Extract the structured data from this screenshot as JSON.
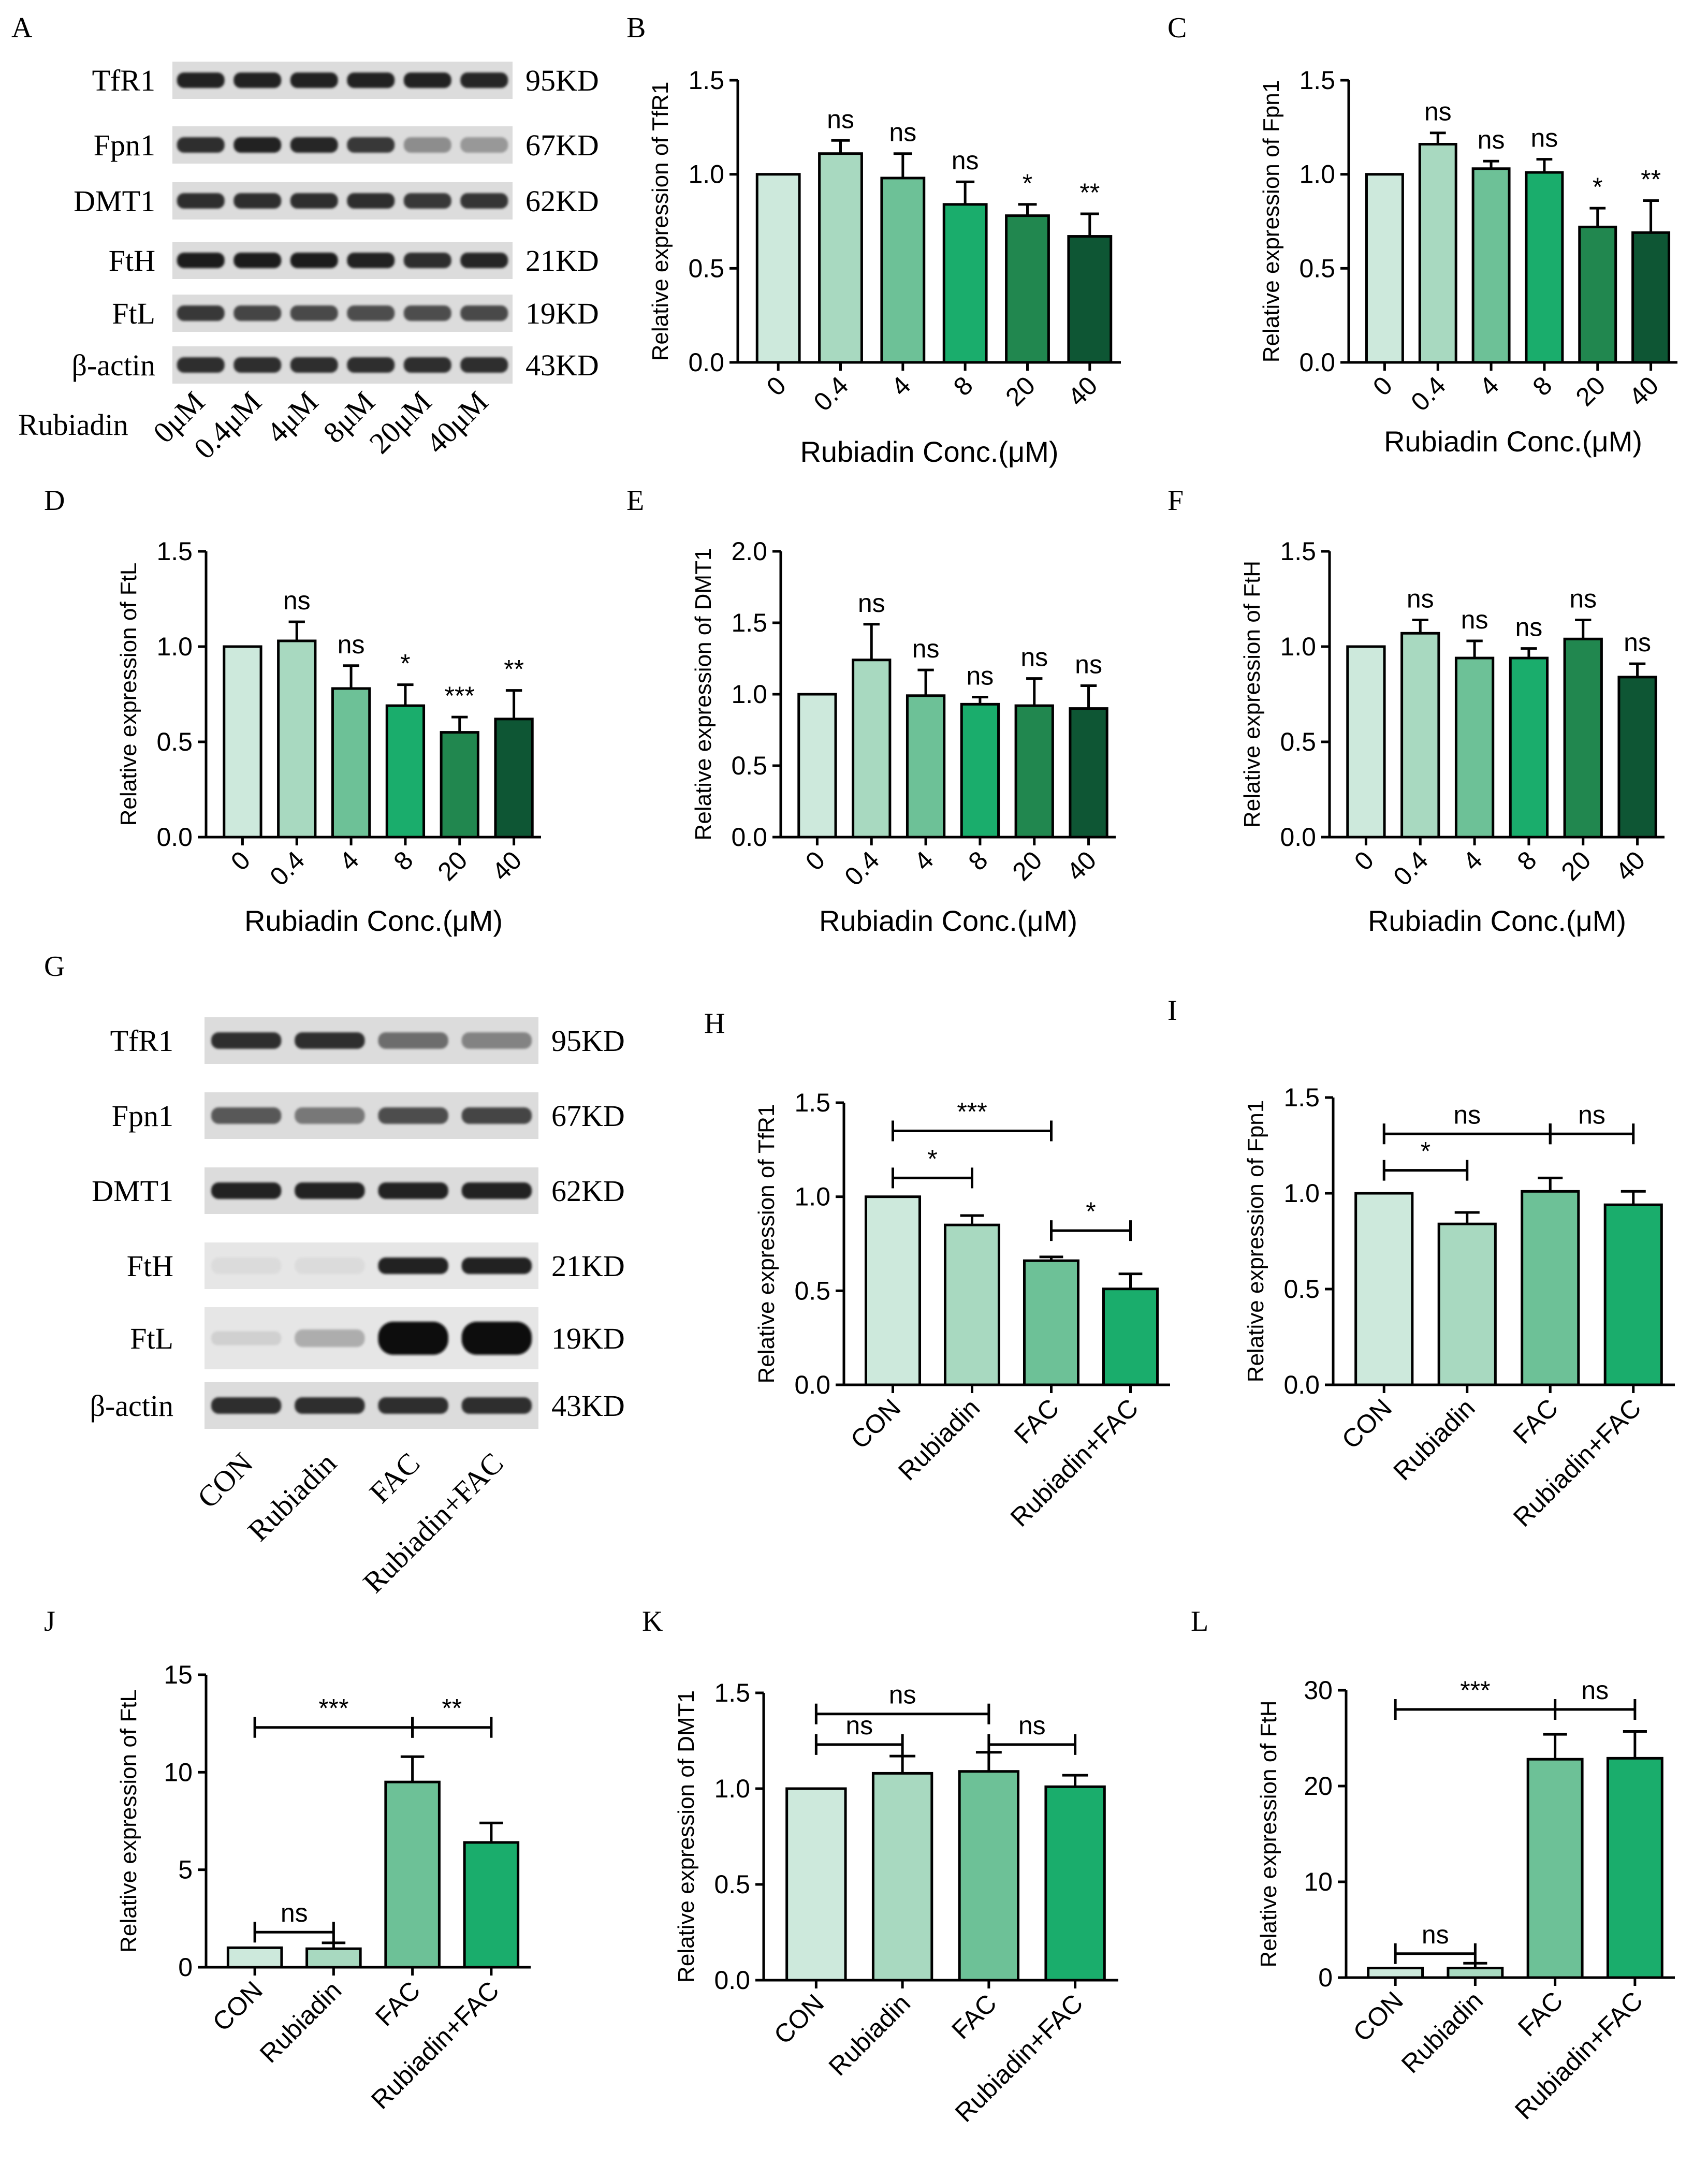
{
  "colors": {
    "c0": "#cde9dc",
    "c1": "#a8d9c0",
    "c2": "#6dc197",
    "c3": "#1aad6c",
    "c4": "#21874f",
    "c5": "#0e5634",
    "axis": "#000000",
    "blot_bg_a": "#dcdcdc",
    "blot_band": "#1a1a1a"
  },
  "blot_a": {
    "letter": "A",
    "proteins": [
      "TfR1",
      "Fpn1",
      "DMT1",
      "FtH",
      "FtL",
      "β-actin"
    ],
    "sizes": [
      "95KD",
      "67KD",
      "62KD",
      "21KD",
      "19KD",
      "43KD"
    ],
    "treatment_label": "Rubiadin",
    "lanes": [
      "0μM",
      "0.4μM",
      "4μM",
      "8μM",
      "20μM",
      "40μM"
    ],
    "intensities": [
      [
        0.9,
        0.9,
        0.9,
        0.9,
        0.9,
        0.88
      ],
      [
        0.85,
        0.9,
        0.88,
        0.8,
        0.4,
        0.35
      ],
      [
        0.85,
        0.85,
        0.85,
        0.85,
        0.8,
        0.82
      ],
      [
        0.95,
        0.95,
        0.95,
        0.92,
        0.85,
        0.88
      ],
      [
        0.8,
        0.75,
        0.72,
        0.7,
        0.7,
        0.72
      ],
      [
        0.85,
        0.85,
        0.85,
        0.85,
        0.85,
        0.85
      ]
    ]
  },
  "blot_g": {
    "letter": "G",
    "proteins": [
      "TfR1",
      "Fpn1",
      "DMT1",
      "FtH",
      "FtL",
      "β-actin"
    ],
    "sizes": [
      "95KD",
      "67KD",
      "62KD",
      "21KD",
      "19KD",
      "43KD"
    ],
    "lanes": [
      "CON",
      "Rubiadin",
      "FAC",
      "Rubiadin+FAC"
    ],
    "intensities": [
      [
        0.85,
        0.85,
        0.55,
        0.45
      ],
      [
        0.65,
        0.5,
        0.7,
        0.75
      ],
      [
        0.9,
        0.9,
        0.9,
        0.9
      ],
      [
        0.03,
        0.03,
        0.9,
        0.9
      ],
      [
        0.08,
        0.25,
        1.0,
        1.0
      ],
      [
        0.85,
        0.85,
        0.85,
        0.85
      ]
    ]
  },
  "chart_data": [
    {
      "letter": "B",
      "type": "bar",
      "categories": [
        "0",
        "0.4",
        "4",
        "8",
        "20",
        "40"
      ],
      "values": [
        1.0,
        1.11,
        0.98,
        0.84,
        0.78,
        0.67
      ],
      "errors": [
        0,
        0.07,
        0.13,
        0.12,
        0.06,
        0.12
      ],
      "significance": [
        "",
        "ns",
        "ns",
        "ns",
        "*",
        "**"
      ],
      "ylabel": "Relative expression of TfR1",
      "xlabel": "Rubiadin Conc.(μM)",
      "ylim": [
        0,
        1.5
      ],
      "yticks": [
        "0.0",
        "0.5",
        "1.0",
        "1.5"
      ],
      "brackets": []
    },
    {
      "letter": "C",
      "type": "bar",
      "categories": [
        "0",
        "0.4",
        "4",
        "8",
        "20",
        "40"
      ],
      "values": [
        1.0,
        1.16,
        1.03,
        1.01,
        0.72,
        0.69
      ],
      "errors": [
        0,
        0.06,
        0.04,
        0.07,
        0.1,
        0.17
      ],
      "significance": [
        "",
        "ns",
        "ns",
        "ns",
        "*",
        "**"
      ],
      "ylabel": "Relative expression of Fpn1",
      "xlabel": "Rubiadin Conc.(μM)",
      "ylim": [
        0,
        1.5
      ],
      "yticks": [
        "0.0",
        "0.5",
        "1.0",
        "1.5"
      ],
      "brackets": []
    },
    {
      "letter": "D",
      "type": "bar",
      "categories": [
        "0",
        "0.4",
        "4",
        "8",
        "20",
        "40"
      ],
      "values": [
        1.0,
        1.03,
        0.78,
        0.69,
        0.55,
        0.62
      ],
      "errors": [
        0,
        0.1,
        0.12,
        0.11,
        0.08,
        0.15
      ],
      "significance": [
        "",
        "ns",
        "ns",
        "*",
        "***",
        "**"
      ],
      "ylabel": "Relative expression of FtL",
      "xlabel": "Rubiadin Conc.(μM)",
      "ylim": [
        0,
        1.5
      ],
      "yticks": [
        "0.0",
        "0.5",
        "1.0",
        "1.5"
      ],
      "brackets": []
    },
    {
      "letter": "E",
      "type": "bar",
      "categories": [
        "0",
        "0.4",
        "4",
        "8",
        "20",
        "40"
      ],
      "values": [
        1.0,
        1.24,
        0.99,
        0.93,
        0.92,
        0.9
      ],
      "errors": [
        0,
        0.25,
        0.18,
        0.05,
        0.19,
        0.16
      ],
      "significance": [
        "",
        "ns",
        "ns",
        "ns",
        "ns",
        "ns"
      ],
      "ylabel": "Relative expression of DMT1",
      "xlabel": "Rubiadin Conc.(μM)",
      "ylim": [
        0,
        2.0
      ],
      "yticks": [
        "0.0",
        "0.5",
        "1.0",
        "1.5",
        "2.0"
      ],
      "brackets": []
    },
    {
      "letter": "F",
      "type": "bar",
      "categories": [
        "0",
        "0.4",
        "4",
        "8",
        "20",
        "40"
      ],
      "values": [
        1.0,
        1.07,
        0.94,
        0.94,
        1.04,
        0.84
      ],
      "errors": [
        0,
        0.07,
        0.09,
        0.05,
        0.1,
        0.07
      ],
      "significance": [
        "",
        "ns",
        "ns",
        "ns",
        "ns",
        "ns"
      ],
      "ylabel": "Relative expression of FtH",
      "xlabel": "Rubiadin Conc.(μM)",
      "ylim": [
        0,
        1.5
      ],
      "yticks": [
        "0.0",
        "0.5",
        "1.0",
        "1.5"
      ],
      "brackets": []
    },
    {
      "letter": "H",
      "type": "bar",
      "categories": [
        "CON",
        "Rubiadin",
        "FAC",
        "Rubiadin+FAC"
      ],
      "values": [
        1.0,
        0.85,
        0.66,
        0.51
      ],
      "errors": [
        0,
        0.05,
        0.02,
        0.08
      ],
      "significance": [
        "",
        "",
        "",
        ""
      ],
      "ylabel": "Relative expression of TfR1",
      "xlabel": "",
      "ylim": [
        0,
        1.5
      ],
      "yticks": [
        "0.0",
        "0.5",
        "1.0",
        "1.5"
      ],
      "brackets": [
        {
          "from": 0,
          "to": 2,
          "y": 1.35,
          "label": "***"
        },
        {
          "from": 0,
          "to": 1,
          "y": 1.1,
          "label": "*"
        },
        {
          "from": 2,
          "to": 3,
          "y": 0.82,
          "label": "*"
        }
      ]
    },
    {
      "letter": "I",
      "type": "bar",
      "categories": [
        "CON",
        "Rubiadin",
        "FAC",
        "Rubiadin+FAC"
      ],
      "values": [
        1.0,
        0.84,
        1.01,
        0.94
      ],
      "errors": [
        0,
        0.06,
        0.07,
        0.07
      ],
      "significance": [
        "",
        "",
        "",
        ""
      ],
      "ylabel": "Relative expression of Fpn1",
      "xlabel": "",
      "ylim": [
        0,
        1.5
      ],
      "yticks": [
        "0.0",
        "0.5",
        "1.0",
        "1.5"
      ],
      "brackets": [
        {
          "from": 0,
          "to": 2,
          "y": 1.31,
          "label": "ns"
        },
        {
          "from": 2,
          "to": 3,
          "y": 1.31,
          "label": "ns"
        },
        {
          "from": 0,
          "to": 1,
          "y": 1.12,
          "label": "*"
        }
      ]
    },
    {
      "letter": "J",
      "type": "bar",
      "categories": [
        "CON",
        "Rubiadin",
        "FAC",
        "Rubiadin+FAC"
      ],
      "values": [
        1.0,
        0.95,
        9.5,
        6.4
      ],
      "errors": [
        0,
        0.3,
        1.3,
        1.0
      ],
      "significance": [
        "",
        "",
        "",
        ""
      ],
      "ylabel": "Relative expression of FtL",
      "xlabel": "",
      "ylim": [
        0,
        15
      ],
      "yticks": [
        "0",
        "5",
        "10",
        "15"
      ],
      "brackets": [
        {
          "from": 0,
          "to": 2,
          "y": 12.3,
          "label": "***"
        },
        {
          "from": 2,
          "to": 3,
          "y": 12.3,
          "label": "**"
        },
        {
          "from": 0,
          "to": 1,
          "y": 1.8,
          "label": "ns"
        }
      ]
    },
    {
      "letter": "K",
      "type": "bar",
      "categories": [
        "CON",
        "Rubiadin",
        "FAC",
        "Rubiadin+FAC"
      ],
      "values": [
        1.0,
        1.08,
        1.09,
        1.01
      ],
      "errors": [
        0,
        0.09,
        0.1,
        0.06
      ],
      "significance": [
        "",
        "",
        "",
        ""
      ],
      "ylabel": "Relative expression of DMT1",
      "xlabel": "",
      "ylim": [
        0,
        1.5
      ],
      "yticks": [
        "0.0",
        "0.5",
        "1.0",
        "1.5"
      ],
      "brackets": [
        {
          "from": 0,
          "to": 2,
          "y": 1.39,
          "label": "ns"
        },
        {
          "from": 0,
          "to": 1,
          "y": 1.23,
          "label": "ns"
        },
        {
          "from": 2,
          "to": 3,
          "y": 1.23,
          "label": "ns"
        }
      ]
    },
    {
      "letter": "L",
      "type": "bar",
      "categories": [
        "CON",
        "Rubiadin",
        "FAC",
        "Rubiadin+FAC"
      ],
      "values": [
        1.0,
        1.0,
        22.8,
        22.9
      ],
      "errors": [
        0,
        0.5,
        2.6,
        2.8
      ],
      "significance": [
        "",
        "",
        "",
        ""
      ],
      "ylabel": "Relative expression of FtH",
      "xlabel": "",
      "ylim": [
        0,
        30
      ],
      "yticks": [
        "0",
        "10",
        "20",
        "30"
      ],
      "brackets": [
        {
          "from": 0,
          "to": 2,
          "y": 28.0,
          "label": "***"
        },
        {
          "from": 2,
          "to": 3,
          "y": 28.0,
          "label": "ns"
        },
        {
          "from": 0,
          "to": 1,
          "y": 2.5,
          "label": "ns"
        }
      ]
    }
  ]
}
